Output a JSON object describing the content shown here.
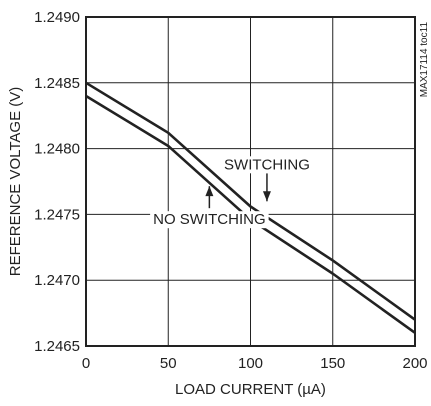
{
  "chart_data": {
    "type": "line",
    "xlabel": "LOAD CURRENT (µA)",
    "ylabel": "REFERENCE VOLTAGE (V)",
    "xlim": [
      0,
      200
    ],
    "ylim": [
      1.2465,
      1.249
    ],
    "x_ticks": [
      "0",
      "50",
      "100",
      "150",
      "200"
    ],
    "y_ticks": [
      "1.2465",
      "1.2470",
      "1.2475",
      "1.2480",
      "1.2485",
      "1.2490"
    ],
    "grid": true,
    "legend": "none",
    "series": [
      {
        "name": "SWITCHING",
        "x": [
          0,
          50,
          100,
          150,
          200
        ],
        "y": [
          1.2485,
          1.24812,
          1.24756,
          1.24715,
          1.2467
        ]
      },
      {
        "name": "NO SWITCHING",
        "x": [
          0,
          50,
          100,
          150,
          200
        ],
        "y": [
          1.2484,
          1.24802,
          1.24746,
          1.24705,
          1.2466
        ]
      }
    ],
    "annotations": [
      {
        "text": "SWITCHING",
        "x": 110,
        "y": 1.24763
      },
      {
        "text": "NO SWITCHING",
        "x": 75,
        "y": 1.24776
      }
    ],
    "side_note": "MAX17114 toc11",
    "colors": {
      "line": "#222222",
      "grid": "#222222"
    }
  }
}
